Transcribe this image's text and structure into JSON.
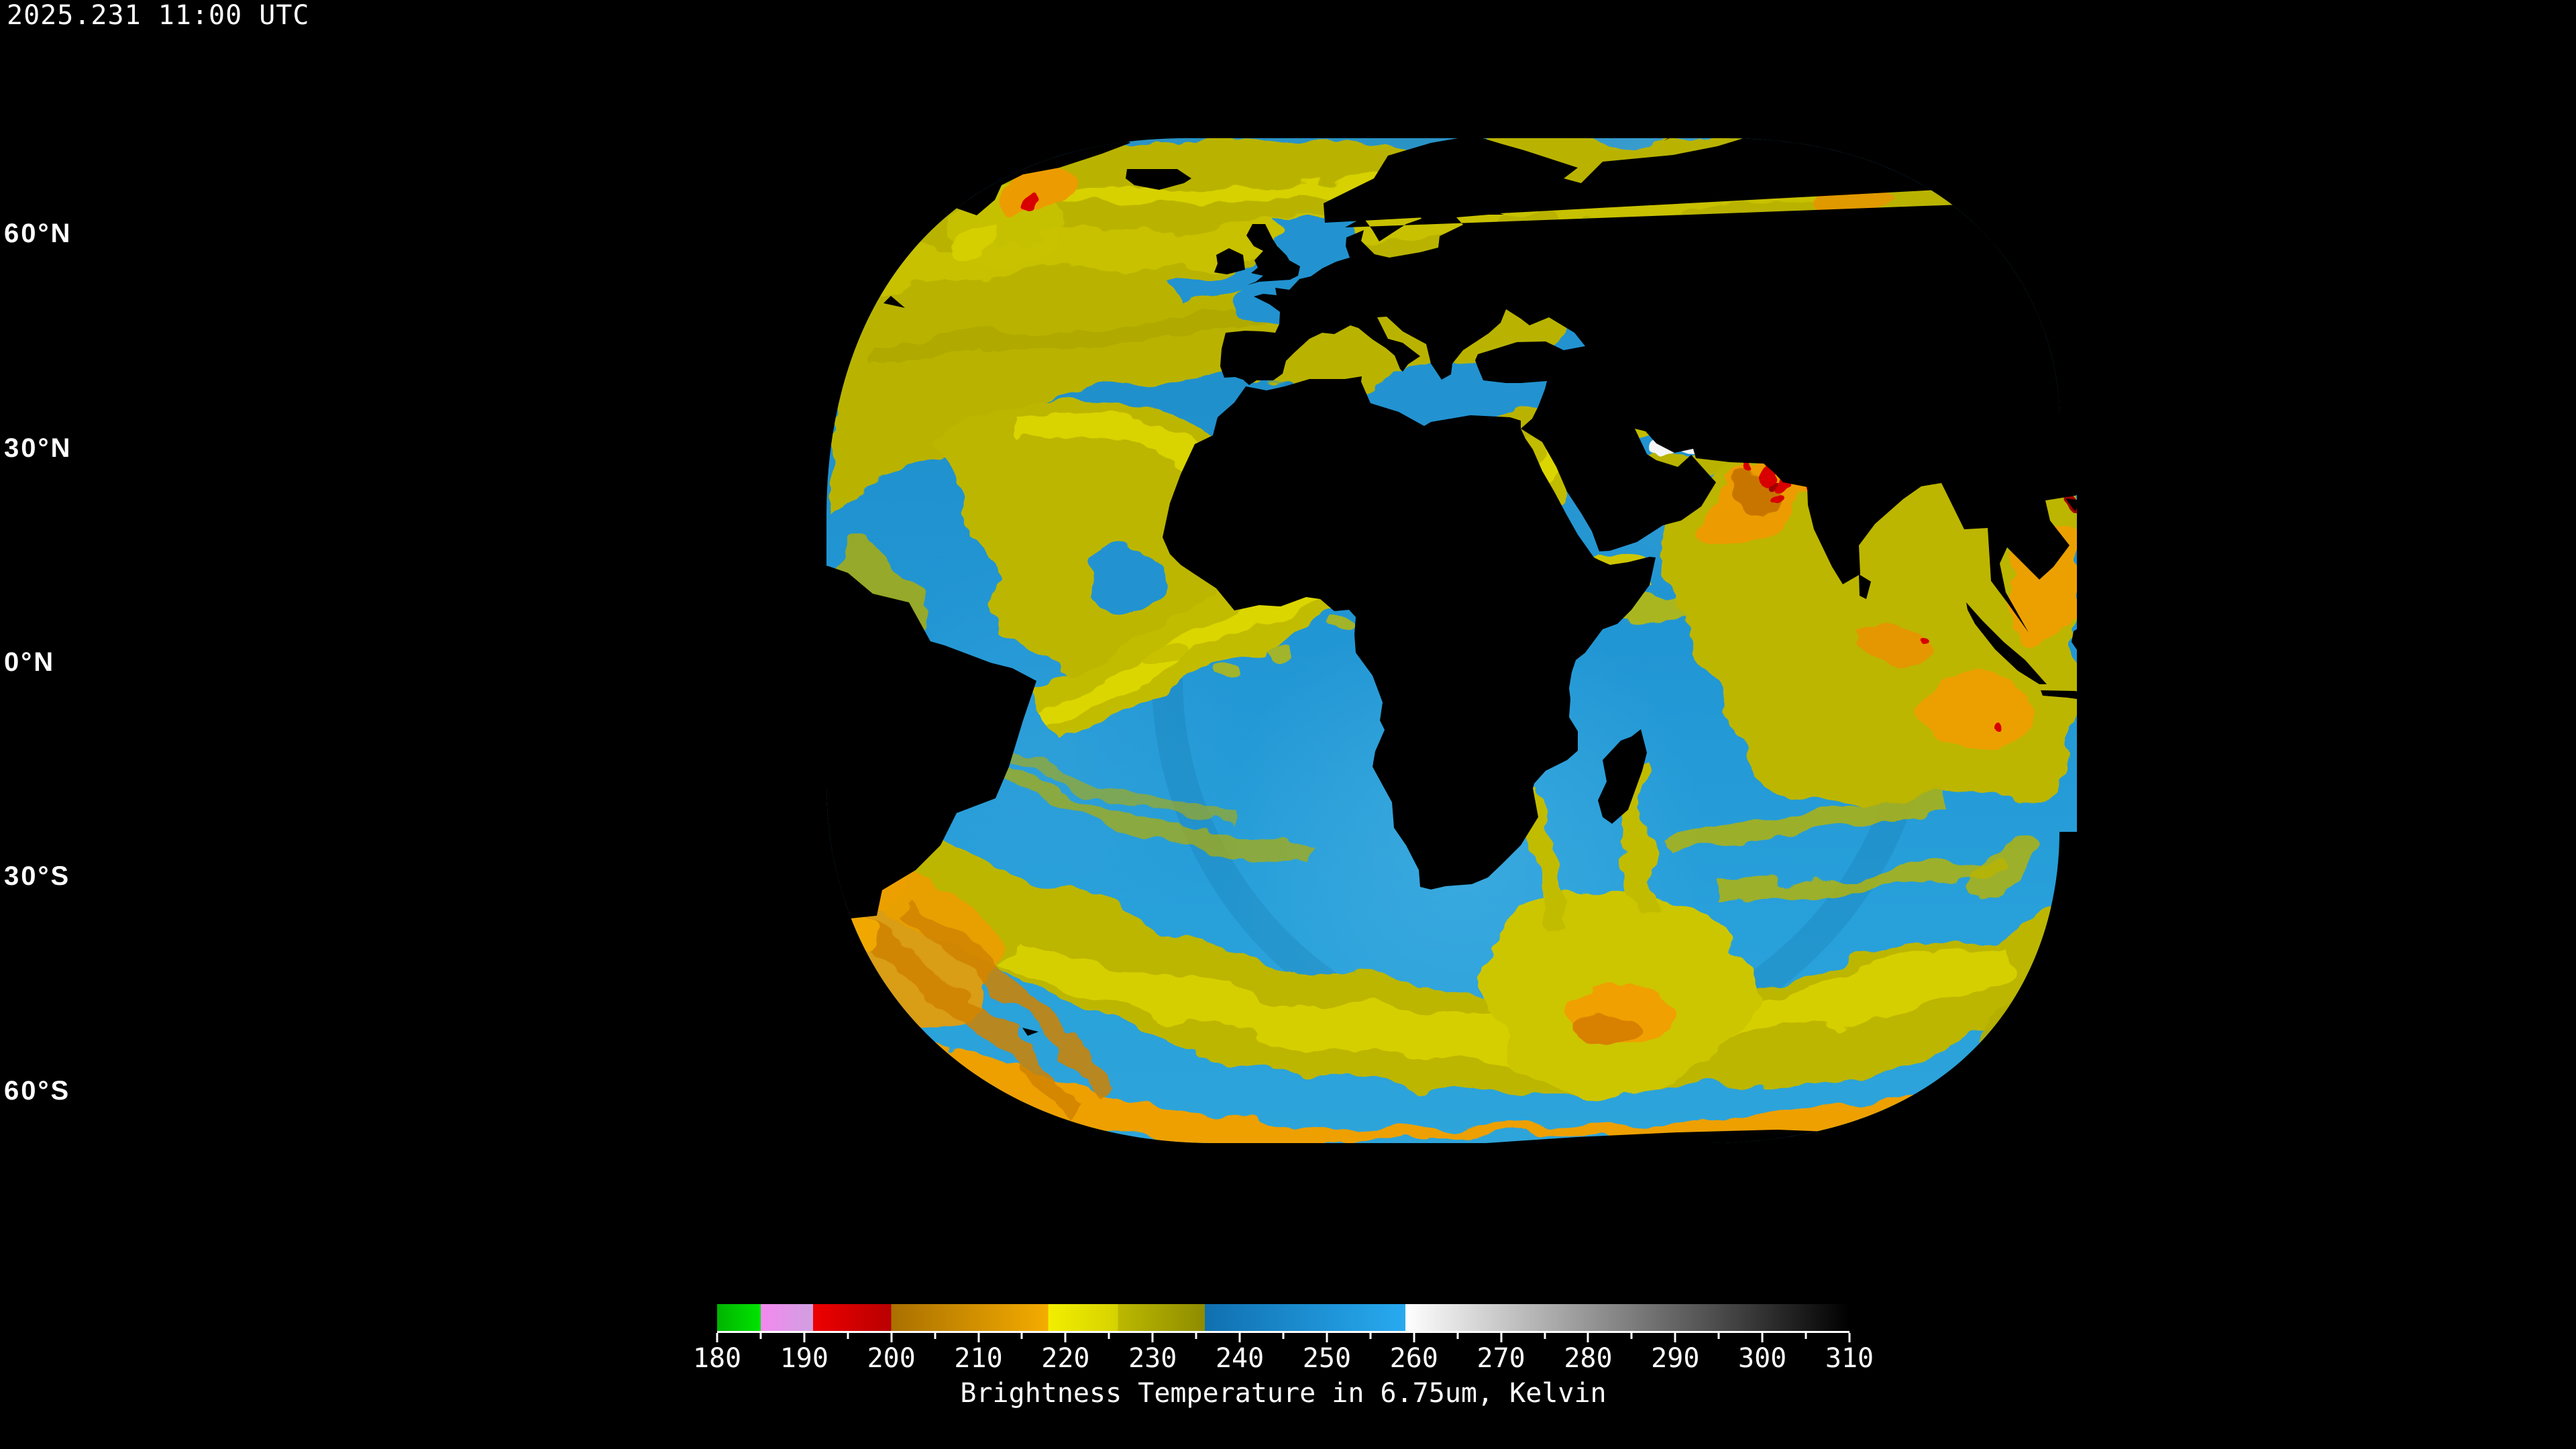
{
  "header": {
    "timestamp": "2025.231 11:00 UTC"
  },
  "map": {
    "latitude_labels": [
      {
        "text": "60°N",
        "lat": 60
      },
      {
        "text": "30°N",
        "lat": 30
      },
      {
        "text": "0°N",
        "lat": 0
      },
      {
        "text": "30°S",
        "lat": -30
      },
      {
        "text": "60°S",
        "lat": -60
      }
    ],
    "graticule": {
      "lat_step_deg": 30,
      "lon_step_deg": 30
    },
    "colors": {
      "background": "#000000",
      "coastline_outside_swath": "#f0f0f0",
      "coastline_inside_swath": "#000000",
      "gridline_outside_swath": "#e8e8e8",
      "gridline_inside_swath": "#000000"
    }
  },
  "legend": {
    "title": "Brightness Temperature in 6.75um, Kelvin",
    "min": 180,
    "max": 310,
    "major_tick_step": 10,
    "minor_tick_step": 5,
    "major_tick_labels": [
      "180",
      "190",
      "200",
      "210",
      "220",
      "230",
      "240",
      "250",
      "260",
      "270",
      "280",
      "290",
      "300",
      "310"
    ],
    "segments": [
      {
        "from": 180,
        "to": 185,
        "color_start": "#00b400",
        "color_end": "#00e400"
      },
      {
        "from": 185,
        "to": 191,
        "color_start": "#f488f0",
        "color_end": "#d0a0e0"
      },
      {
        "from": 191,
        "to": 200,
        "color_start": "#ee0000",
        "color_end": "#b80000"
      },
      {
        "from": 200,
        "to": 218,
        "color_start": "#aa7000",
        "color_end": "#f4ac00"
      },
      {
        "from": 218,
        "to": 226,
        "color_start": "#f2ee00",
        "color_end": "#d6d200"
      },
      {
        "from": 226,
        "to": 236,
        "color_start": "#bcb800",
        "color_end": "#8e8c00"
      },
      {
        "from": 236,
        "to": 259,
        "color_start": "#1070b0",
        "color_end": "#28aaf0"
      },
      {
        "from": 259,
        "to": 310,
        "color_start": "#ffffff",
        "color_end": "#000000"
      }
    ]
  }
}
